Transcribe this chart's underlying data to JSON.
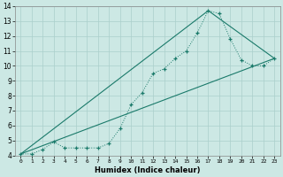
{
  "xlabel": "Humidex (Indice chaleur)",
  "bg_color": "#cce8e4",
  "grid_color": "#aacfcb",
  "line_color": "#1a7a6a",
  "xlim": [
    -0.5,
    23.5
  ],
  "ylim": [
    4,
    14
  ],
  "xticks": [
    0,
    1,
    2,
    3,
    4,
    5,
    6,
    7,
    8,
    9,
    10,
    11,
    12,
    13,
    14,
    15,
    16,
    17,
    18,
    19,
    20,
    21,
    22,
    23
  ],
  "yticks": [
    4,
    5,
    6,
    7,
    8,
    9,
    10,
    11,
    12,
    13,
    14
  ],
  "series": [
    {
      "x": [
        0,
        1,
        2,
        3,
        4,
        5,
        6,
        7,
        8,
        9,
        10,
        11,
        12,
        13,
        14,
        15,
        16,
        17,
        18,
        19,
        20,
        21,
        22,
        23
      ],
      "y": [
        4.1,
        4.1,
        4.4,
        4.9,
        4.5,
        4.5,
        4.5,
        4.5,
        4.8,
        5.8,
        7.4,
        8.2,
        9.5,
        9.8,
        10.5,
        11.0,
        12.2,
        13.7,
        13.5,
        11.8,
        10.4,
        10.0,
        10.0,
        10.5
      ]
    },
    {
      "x": [
        0,
        23
      ],
      "y": [
        4.1,
        10.5
      ]
    },
    {
      "x": [
        0,
        17,
        23
      ],
      "y": [
        4.1,
        13.7,
        10.5
      ]
    }
  ]
}
